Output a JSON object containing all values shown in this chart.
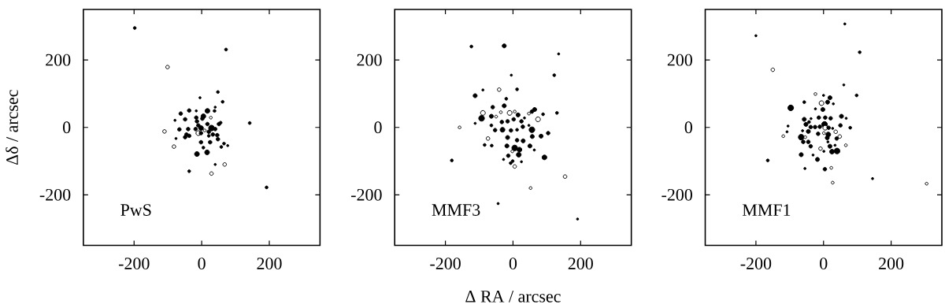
{
  "chart_data": [
    {
      "type": "bubble",
      "ylabel": "Δδ / arcsec",
      "annotations": [
        "PwS"
      ],
      "xlim": [
        -350,
        350
      ],
      "ylim": [
        -350,
        350
      ],
      "xticks": [
        -200,
        0,
        200
      ],
      "yticks": [
        -200,
        0,
        200
      ],
      "x": [
        -198,
        -101,
        72,
        48,
        -5,
        62,
        40,
        142,
        192,
        -110,
        -82,
        68,
        40,
        -37,
        29,
        -14,
        16,
        -79,
        -62,
        -37,
        -16,
        -49,
        -66,
        -76,
        -45,
        -37,
        -49,
        -40,
        -14,
        -10,
        -18,
        -2,
        5,
        2,
        17,
        29,
        21,
        40,
        51,
        56,
        46,
        48,
        21,
        33,
        -2,
        25,
        5,
        66,
        77,
        58,
        38,
        17,
        -10,
        27,
        -2,
        -16,
        9
      ],
      "values": [
        295,
        179,
        231,
        105,
        88,
        76,
        60,
        13,
        -178,
        -12,
        -57,
        -110,
        -110,
        -130,
        -137,
        -79,
        -74,
        21,
        41,
        50,
        49,
        24,
        -6,
        -33,
        -21,
        -25,
        -29,
        -5,
        18,
        6,
        -5,
        -2,
        33,
        26,
        10,
        -2,
        -13,
        -5,
        10,
        14,
        -23,
        -35,
        -25,
        -21,
        -44,
        -44,
        -60,
        -48,
        -54,
        -58,
        49,
        49,
        -17,
        29,
        -17,
        29,
        -9
      ],
      "sizes": [
        0.25,
        0.4,
        0.25,
        0.25,
        0.15,
        0.25,
        0.15,
        0.25,
        0.25,
        0.4,
        0.4,
        0.4,
        0.15,
        0.25,
        0.4,
        0.7,
        0.7,
        0.15,
        0.4,
        0.4,
        0.15,
        0.4,
        0.4,
        0.15,
        0.4,
        0.4,
        0.4,
        0.4,
        0.4,
        0.4,
        0.4,
        0.7,
        0.7,
        0.4,
        0.4,
        1,
        0.4,
        0.4,
        0.4,
        0.25,
        0.4,
        0.4,
        0.25,
        0.4,
        0.4,
        0.4,
        0.25,
        0.25,
        0.15,
        0.25,
        0.25,
        0.7,
        0.7,
        0.25,
        0.4,
        0.4,
        0.25
      ],
      "colors": [
        "#000000",
        "#ffffff",
        "#000000",
        "#000000",
        "#000000",
        "#000000",
        "#000000",
        "#000000",
        "#000000",
        "#ffffff",
        "#ffffff",
        "#ffffff",
        "#000000",
        "#000000",
        "#ffffff",
        "#000000",
        "#000000",
        "#000000",
        "#000000",
        "#000000",
        "#000000",
        "#000000",
        "#000000",
        "#000000",
        "#000000",
        "#000000",
        "#000000",
        "#000000",
        "#000000",
        "#000000",
        "#000000",
        "#000000",
        "#000000",
        "#000000",
        "#000000",
        "#000000",
        "#000000",
        "#000000",
        "#000000",
        "#000000",
        "#000000",
        "#000000",
        "#000000",
        "#000000",
        "#000000",
        "#000000",
        "#000000",
        "#000000",
        "#000000",
        "#000000",
        "#000000",
        "#000000",
        "#ffffff",
        "#ffffff",
        "#000000",
        "#000000",
        "#ffffff"
      ]
    },
    {
      "type": "bubble",
      "xlabel": "Δ RA / arcsec",
      "annotations": [
        "MMF3"
      ],
      "xlim": [
        -350,
        350
      ],
      "ylim": [
        -350,
        350
      ],
      "xticks": [
        -200,
        0,
        200
      ],
      "yticks": [
        -200,
        0,
        200
      ],
      "x": [
        135,
        122,
        -5,
        -89,
        -41,
        12,
        -112,
        -20,
        -158,
        -181,
        -89,
        -93,
        -112,
        -64,
        -60,
        -26,
        -36,
        -10,
        5,
        15,
        47,
        64,
        56,
        89,
        130,
        74,
        -50,
        -33,
        2,
        25,
        -16,
        34,
        -64,
        -53,
        -31,
        -6,
        12,
        29,
        47,
        56,
        104,
        83,
        57,
        -74,
        -16,
        12,
        30,
        -84,
        -63,
        -18,
        5,
        19,
        -2,
        50,
        63,
        17,
        93,
        -14,
        -28,
        -1,
        -7,
        25,
        5,
        154,
        52,
        -26,
        -123,
        -44,
        191
      ],
      "values": [
        218,
        155,
        155,
        111,
        112,
        113,
        94,
        85,
        0,
        -98,
        43,
        27,
        12,
        33,
        60,
        64,
        45,
        43,
        47,
        37,
        41,
        53,
        47,
        39,
        43,
        24,
        32,
        16,
        24,
        18,
        18,
        28,
        6,
        -8,
        -7,
        -9,
        -7,
        2,
        6,
        -7,
        -17,
        -26,
        -27,
        -33,
        -30,
        -38,
        -40,
        -52,
        -54,
        -55,
        -61,
        -66,
        -71,
        -55,
        -67,
        -81,
        -89,
        -84,
        -95,
        -100,
        -106,
        -102,
        -116,
        -146,
        -180,
        242,
        240,
        -226,
        -272
      ],
      "sizes": [
        0.15,
        0.25,
        0.15,
        0.15,
        0.4,
        0.25,
        0.5,
        0.25,
        0.25,
        0.25,
        0.7,
        1,
        0.15,
        0.5,
        0.4,
        0.5,
        0.25,
        0.7,
        0.25,
        0.5,
        0.25,
        0.5,
        0.4,
        0.25,
        0.25,
        0.7,
        0.25,
        0.4,
        0.4,
        0.4,
        0.4,
        0.15,
        0.25,
        0.4,
        0.7,
        0.4,
        0.25,
        0.4,
        0.15,
        1,
        0.4,
        0.5,
        0.5,
        0.4,
        0.5,
        0.4,
        0.5,
        0.25,
        0.25,
        0.5,
        1,
        0.7,
        0.25,
        0.5,
        0.15,
        0.7,
        0.7,
        0.4,
        0.15,
        0.25,
        0.25,
        0.15,
        0.4,
        0.4,
        0.25,
        0.5,
        0.25,
        0.15,
        0.15
      ],
      "colors": [
        "#000000",
        "#000000",
        "#000000",
        "#000000",
        "#ffffff",
        "#000000",
        "#000000",
        "#000000",
        "#ffffff",
        "#000000",
        "#ffffff",
        "#000000",
        "#000000",
        "#000000",
        "#000000",
        "#000000",
        "#ffffff",
        "#ffffff",
        "#ffffff",
        "#000000",
        "#ffffff",
        "#000000",
        "#000000",
        "#000000",
        "#000000",
        "#ffffff",
        "#ffffff",
        "#000000",
        "#000000",
        "#000000",
        "#000000",
        "#000000",
        "#000000",
        "#000000",
        "#000000",
        "#000000",
        "#000000",
        "#000000",
        "#000000",
        "#000000",
        "#000000",
        "#000000",
        "#000000",
        "#ffffff",
        "#000000",
        "#000000",
        "#000000",
        "#000000",
        "#000000",
        "#000000",
        "#000000",
        "#000000",
        "#ffffff",
        "#000000",
        "#000000",
        "#000000",
        "#000000",
        "#000000",
        "#000000",
        "#000000",
        "#000000",
        "#000000",
        "#ffffff",
        "#ffffff",
        "#ffffff",
        "#000000",
        "#000000",
        "#000000",
        "#000000"
      ]
    },
    {
      "type": "bubble",
      "annotations": [
        "MMF1"
      ],
      "xlim": [
        -350,
        350
      ],
      "ylim": [
        -350,
        350
      ],
      "xticks": [
        -200,
        0,
        200
      ],
      "yticks": [
        -200,
        0,
        200
      ],
      "x": [
        63,
        -200,
        107,
        -150,
        60,
        98,
        -97,
        -57,
        -24,
        -6,
        12,
        19,
        0,
        29,
        -2,
        -24,
        -57,
        -37,
        -14,
        5,
        21,
        53,
        67,
        -43,
        -52,
        -38,
        -25,
        -11,
        3,
        5,
        15,
        27,
        50,
        79,
        -105,
        -108,
        -119,
        -66,
        -54,
        -45,
        -62,
        -16,
        1,
        14,
        36,
        48,
        39,
        11,
        13,
        -60,
        -45,
        -38,
        19,
        34,
        66,
        -9,
        1,
        25,
        40,
        -66,
        -31,
        -18,
        -165,
        -55,
        4,
        23,
        27,
        145,
        305
      ],
      "values": [
        307,
        272,
        223,
        171,
        126,
        95,
        58,
        75,
        99,
        72,
        75,
        88,
        95,
        70,
        53,
        55,
        24,
        26,
        29,
        29,
        27,
        33,
        27,
        16,
        9,
        1,
        1,
        2,
        9,
        -1,
        -1,
        -3,
        6,
        -1,
        4,
        -13,
        -26,
        -29,
        -29,
        -12,
        -10,
        -19,
        -17,
        -21,
        -13,
        -27,
        -33,
        -31,
        -43,
        -43,
        -43,
        -56,
        -56,
        -53,
        -53,
        -63,
        -71,
        -72,
        -70,
        -81,
        -82,
        -95,
        -98,
        -122,
        -124,
        -120,
        -164,
        -152,
        -167
      ],
      "sizes": [
        0.15,
        0.15,
        0.25,
        0.4,
        0.15,
        0.25,
        1,
        0.25,
        0.25,
        0.7,
        0.5,
        0.5,
        0.15,
        0.15,
        0.5,
        0.15,
        0.5,
        0.15,
        0.4,
        0.4,
        0.4,
        0.5,
        0.15,
        0.25,
        0.5,
        0.4,
        0.4,
        0.4,
        1,
        0.7,
        0.4,
        0.15,
        0.4,
        0.25,
        0.15,
        0.15,
        0.25,
        1,
        0.25,
        0.5,
        0.15,
        0.4,
        0.25,
        0.7,
        0.4,
        0.4,
        0.4,
        0.5,
        0.15,
        0.4,
        0.4,
        0.4,
        0.5,
        0.15,
        0.25,
        0.4,
        0.15,
        0.7,
        1,
        0.5,
        0.15,
        0.5,
        0.25,
        0.15,
        0.4,
        0.25,
        0.25,
        0.15,
        0.25
      ],
      "colors": [
        "#000000",
        "#000000",
        "#000000",
        "#ffffff",
        "#000000",
        "#000000",
        "#000000",
        "#000000",
        "#ffffff",
        "#ffffff",
        "#000000",
        "#000000",
        "#000000",
        "#000000",
        "#000000",
        "#000000",
        "#000000",
        "#000000",
        "#000000",
        "#000000",
        "#000000",
        "#000000",
        "#000000",
        "#000000",
        "#000000",
        "#000000",
        "#000000",
        "#000000",
        "#000000",
        "#ffffff",
        "#000000",
        "#000000",
        "#000000",
        "#000000",
        "#000000",
        "#000000",
        "#ffffff",
        "#000000",
        "#ffffff",
        "#000000",
        "#000000",
        "#000000",
        "#ffffff",
        "#000000",
        "#ffffff",
        "#ffffff",
        "#000000",
        "#000000",
        "#000000",
        "#000000",
        "#000000",
        "#000000",
        "#000000",
        "#000000",
        "#ffffff",
        "#ffffff",
        "#000000",
        "#000000",
        "#000000",
        "#000000",
        "#000000",
        "#000000",
        "#000000",
        "#000000",
        "#000000",
        "#ffffff",
        "#ffffff",
        "#000000",
        "#ffffff"
      ]
    }
  ]
}
